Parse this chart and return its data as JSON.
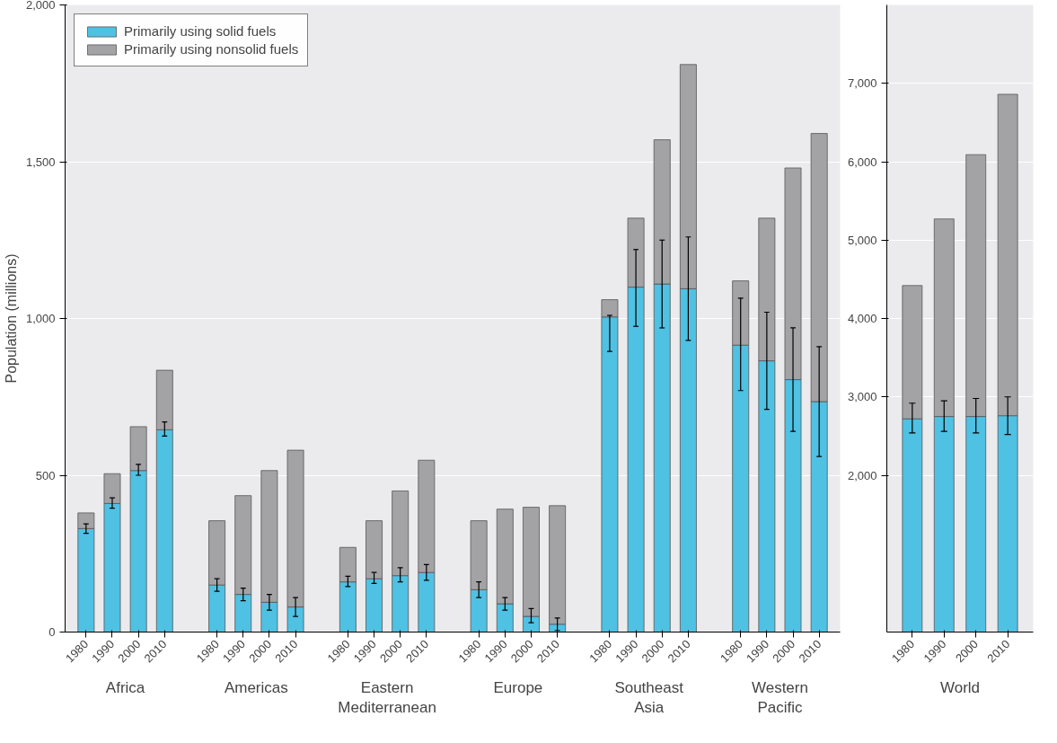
{
  "chart_data": [
    {
      "type": "bar",
      "stacked": true,
      "ylabel": "Population (millions)",
      "ylim": [
        0,
        2000
      ],
      "yticks": [
        0,
        {
          "value": 500,
          "label": "500"
        },
        {
          "value": 1000,
          "label": "1,000"
        },
        {
          "value": 1500,
          "label": "1,500"
        },
        {
          "value": 2000,
          "label": "2,000"
        }
      ],
      "grid": "y",
      "legend": "top left",
      "categories": [
        "1980",
        "1990",
        "2000",
        "2010",
        "1980",
        "1990",
        "2000",
        "2010",
        "1980",
        "1990",
        "2000",
        "2010",
        "1980",
        "1990",
        "2000",
        "2010",
        "1980",
        "1990",
        "2000",
        "2010",
        "1980",
        "1990",
        "2000",
        "2010"
      ],
      "annotations": [
        "Africa",
        "Americas",
        "Eastern Mediterranean",
        "Europe",
        "Southeast Asia",
        "Western Pacific"
      ],
      "series": [
        {
          "name": "Primarily using solid fuels",
          "color": "#4fc1e3",
          "values": [
            330,
            410,
            515,
            645,
            150,
            120,
            95,
            80,
            160,
            170,
            180,
            190,
            135,
            90,
            50,
            25,
            1005,
            1100,
            1110,
            1095,
            915,
            865,
            805,
            735
          ],
          "errors": [
            [
              315,
              345
            ],
            [
              395,
              428
            ],
            [
              500,
              535
            ],
            [
              625,
              670
            ],
            [
              130,
              170
            ],
            [
              100,
              140
            ],
            [
              70,
              120
            ],
            [
              50,
              110
            ],
            [
              145,
              178
            ],
            [
              155,
              190
            ],
            [
              160,
              205
            ],
            [
              165,
              215
            ],
            [
              110,
              160
            ],
            [
              70,
              110
            ],
            [
              30,
              75
            ],
            [
              5,
              45
            ],
            [
              895,
              1010
            ],
            [
              975,
              1220
            ],
            [
              970,
              1250
            ],
            [
              930,
              1260
            ],
            [
              770,
              1065
            ],
            [
              710,
              1020
            ],
            [
              640,
              970
            ],
            [
              560,
              910
            ]
          ]
        },
        {
          "name": "Primarily using nonsolid fuels",
          "color": "#a3a3a6",
          "values": [
            50,
            95,
            140,
            190,
            205,
            315,
            420,
            500,
            110,
            185,
            270,
            358,
            220,
            302,
            348,
            378,
            55,
            220,
            460,
            715,
            205,
            455,
            675,
            855
          ]
        }
      ]
    },
    {
      "type": "bar",
      "stacked": true,
      "ylim": [
        0,
        8000
      ],
      "yticks": [
        {
          "value": 2000,
          "label": "2,000"
        },
        {
          "value": 3000,
          "label": "3,000"
        },
        {
          "value": 4000,
          "label": "4,000"
        },
        {
          "value": 5000,
          "label": "5,000"
        },
        {
          "value": 6000,
          "label": "6,000"
        },
        {
          "value": 7000,
          "label": "7,000"
        }
      ],
      "grid": "y",
      "categories": [
        "1980",
        "1990",
        "2000",
        "2010"
      ],
      "annotations": [
        "World"
      ],
      "series": [
        {
          "color": "#4fc1e3",
          "values": [
            2720,
            2750,
            2750,
            2760
          ],
          "errors": [
            [
              2540,
              2920
            ],
            [
              2560,
              2950
            ],
            [
              2540,
              2980
            ],
            [
              2520,
              3000
            ]
          ]
        },
        {
          "color": "#a3a3a6",
          "values": [
            1700,
            2520,
            3340,
            4100
          ]
        }
      ]
    }
  ]
}
